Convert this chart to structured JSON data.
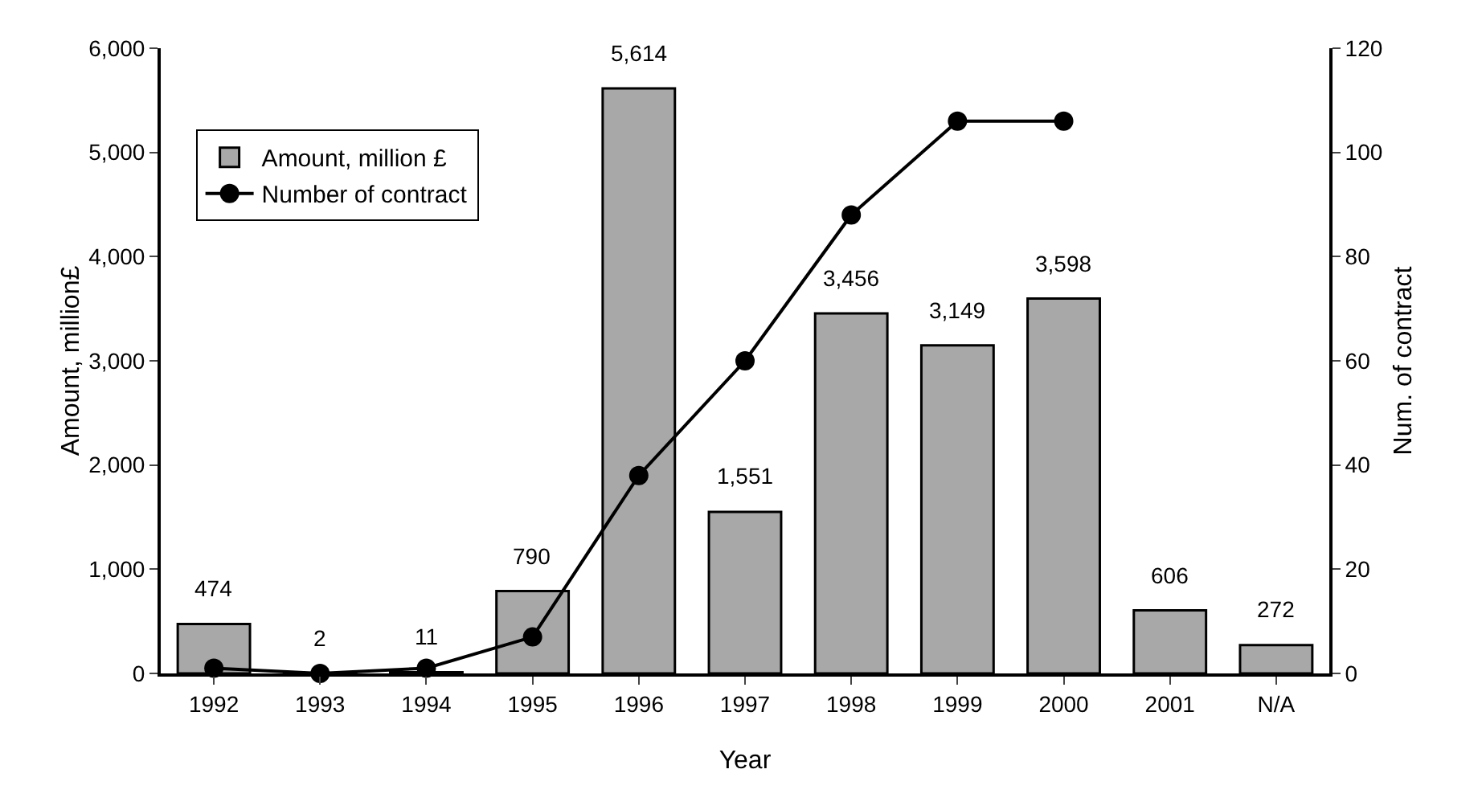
{
  "chart_data": {
    "type": "bar",
    "xlabel": "Year",
    "ylabel": "Amount, million£",
    "y2label": "Num. of contract",
    "categories": [
      "1992",
      "1993",
      "1994",
      "1995",
      "1996",
      "1997",
      "1998",
      "1999",
      "2000",
      "2001",
      "N/A"
    ],
    "series": [
      {
        "name": "Amount, million £",
        "color": "#a8a8a8",
        "value_labels": [
          "474",
          "2",
          "11",
          "790",
          "5,614",
          "1,551",
          "3,456",
          "3,149",
          "3,598",
          "606",
          "272"
        ],
        "values": [
          474,
          2,
          11,
          790,
          5614,
          1551,
          3456,
          3149,
          3598,
          606,
          272
        ]
      },
      {
        "name": "Number of contract",
        "type": "line",
        "axis": "y2",
        "color": "#000000",
        "marker": "circle",
        "line_style": "solid",
        "values": [
          1,
          0,
          1,
          7,
          38,
          60,
          88,
          106,
          106,
          null,
          null
        ]
      }
    ],
    "ylim": [
      0,
      6000
    ],
    "yticks": [
      {
        "value": 0,
        "label": "0"
      },
      {
        "value": 1000,
        "label": "1,000"
      },
      {
        "value": 2000,
        "label": "2,000"
      },
      {
        "value": 3000,
        "label": "3,000"
      },
      {
        "value": 4000,
        "label": "4,000"
      },
      {
        "value": 5000,
        "label": "5,000"
      },
      {
        "value": 6000,
        "label": "6,000"
      }
    ],
    "y2lim": [
      0,
      120
    ],
    "y2ticks": [
      0,
      20,
      40,
      60,
      80,
      100,
      120
    ],
    "grid": false,
    "legend": "top left"
  }
}
